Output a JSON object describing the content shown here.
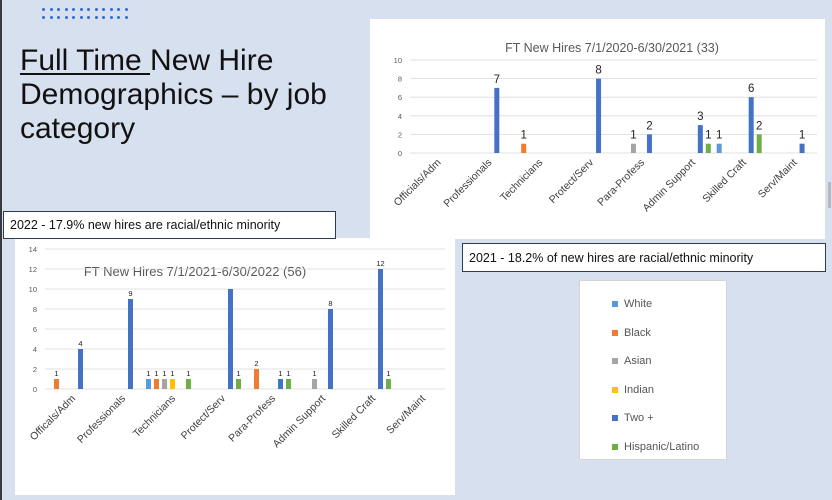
{
  "slide": {
    "title_underlined": "Full Time ",
    "title_rest": "New Hire Demographics – by job category",
    "callout_2022": "2022 - 17.9% new hires are racial/ethnic minority",
    "callout_2021": "2021 - 18.2% of new hires are racial/ethnic minority"
  },
  "legend": [
    {
      "name": "White",
      "color": "#5b9bd5"
    },
    {
      "name": "Black",
      "color": "#ed7d31"
    },
    {
      "name": "Asian",
      "color": "#a5a5a5"
    },
    {
      "name": "Indian",
      "color": "#ffc000"
    },
    {
      "name": "Two +",
      "color": "#4472c4"
    },
    {
      "name": "Hispanic/Latino",
      "color": "#70ad47"
    }
  ],
  "chart_data": [
    {
      "type": "bar",
      "title": "FT New Hires 7/1/2020-6/30/2021 (33)",
      "categories": [
        "Officials/Adm",
        "Professionals",
        "Technicians",
        "Protect/Serv",
        "Para-Profess",
        "Admin Support",
        "Skilled Craft",
        "Serv/Maint"
      ],
      "ylim": [
        0,
        10
      ],
      "yticks": [
        0,
        2,
        4,
        6,
        8,
        10
      ],
      "series": [
        {
          "name": "White",
          "color": "#5b9bd5",
          "values": [
            0,
            0,
            0,
            0,
            0,
            0,
            1,
            0
          ]
        },
        {
          "name": "Black",
          "color": "#ed7d31",
          "values": [
            0,
            0,
            1,
            0,
            0,
            0,
            0,
            0
          ]
        },
        {
          "name": "Asian",
          "color": "#a5a5a5",
          "values": [
            0,
            0,
            0,
            0,
            1,
            0,
            0,
            0
          ]
        },
        {
          "name": "Indian",
          "color": "#ffc000",
          "values": [
            0,
            0,
            0,
            0,
            0,
            0,
            0,
            0
          ]
        },
        {
          "name": "Two +",
          "color": "#4472c4",
          "values": [
            0,
            7,
            0,
            8,
            2,
            3,
            6,
            1
          ]
        },
        {
          "name": "Hispanic/Latino",
          "color": "#70ad47",
          "values": [
            0,
            0,
            0,
            0,
            0,
            1,
            2,
            0
          ]
        }
      ]
    },
    {
      "type": "bar",
      "title": "FT New Hires 7/1/2021-6/30/2022 (56)",
      "categories": [
        "Officals/Adm",
        "Professionals",
        "Technicians",
        "Protect/Serv",
        "Para-Profess",
        "Admin Support",
        "Skilled Craft",
        "Serv/Maint"
      ],
      "ylim": [
        0,
        14
      ],
      "yticks": [
        0,
        2,
        4,
        6,
        8,
        10,
        12,
        14
      ],
      "series": [
        {
          "name": "White",
          "color": "#5b9bd5",
          "values": [
            0,
            0,
            1,
            0,
            0,
            0,
            0,
            0
          ]
        },
        {
          "name": "Black",
          "color": "#ed7d31",
          "values": [
            1,
            0,
            1,
            0,
            2,
            0,
            0,
            0
          ]
        },
        {
          "name": "Asian",
          "color": "#a5a5a5",
          "values": [
            0,
            0,
            1,
            0,
            0,
            1,
            0,
            0
          ]
        },
        {
          "name": "Indian",
          "color": "#ffc000",
          "values": [
            0,
            0,
            1,
            0,
            0,
            0,
            0,
            0
          ]
        },
        {
          "name": "Two +",
          "color": "#4472c4",
          "values": [
            4,
            9,
            0,
            10,
            1,
            8,
            12,
            0
          ]
        },
        {
          "name": "Hispanic/Latino",
          "color": "#70ad47",
          "values": [
            0,
            0,
            1,
            1,
            1,
            0,
            1,
            0
          ]
        }
      ],
      "data_labels": [
        {
          "category": 0,
          "series": 4,
          "value": 4
        },
        {
          "category": 0,
          "series": 1,
          "value": 1
        },
        {
          "category": 1,
          "series": 4,
          "value": 9
        },
        {
          "category": 2,
          "series": 0,
          "value": 1
        },
        {
          "category": 2,
          "series": 1,
          "value": 1
        },
        {
          "category": 2,
          "series": 2,
          "value": 1
        },
        {
          "category": 2,
          "series": 3,
          "value": 1
        },
        {
          "category": 2,
          "series": 5,
          "value": 1
        },
        {
          "category": 3,
          "series": 5,
          "value": 1
        },
        {
          "category": 4,
          "series": 4,
          "value": 1
        },
        {
          "category": 4,
          "series": 1,
          "value": 2
        },
        {
          "category": 4,
          "series": 5,
          "value": 1
        },
        {
          "category": 5,
          "series": 4,
          "value": 8
        },
        {
          "category": 5,
          "series": 2,
          "value": 1
        },
        {
          "category": 6,
          "series": 4,
          "value": 12
        },
        {
          "category": 6,
          "series": 5,
          "value": 1
        }
      ]
    }
  ]
}
